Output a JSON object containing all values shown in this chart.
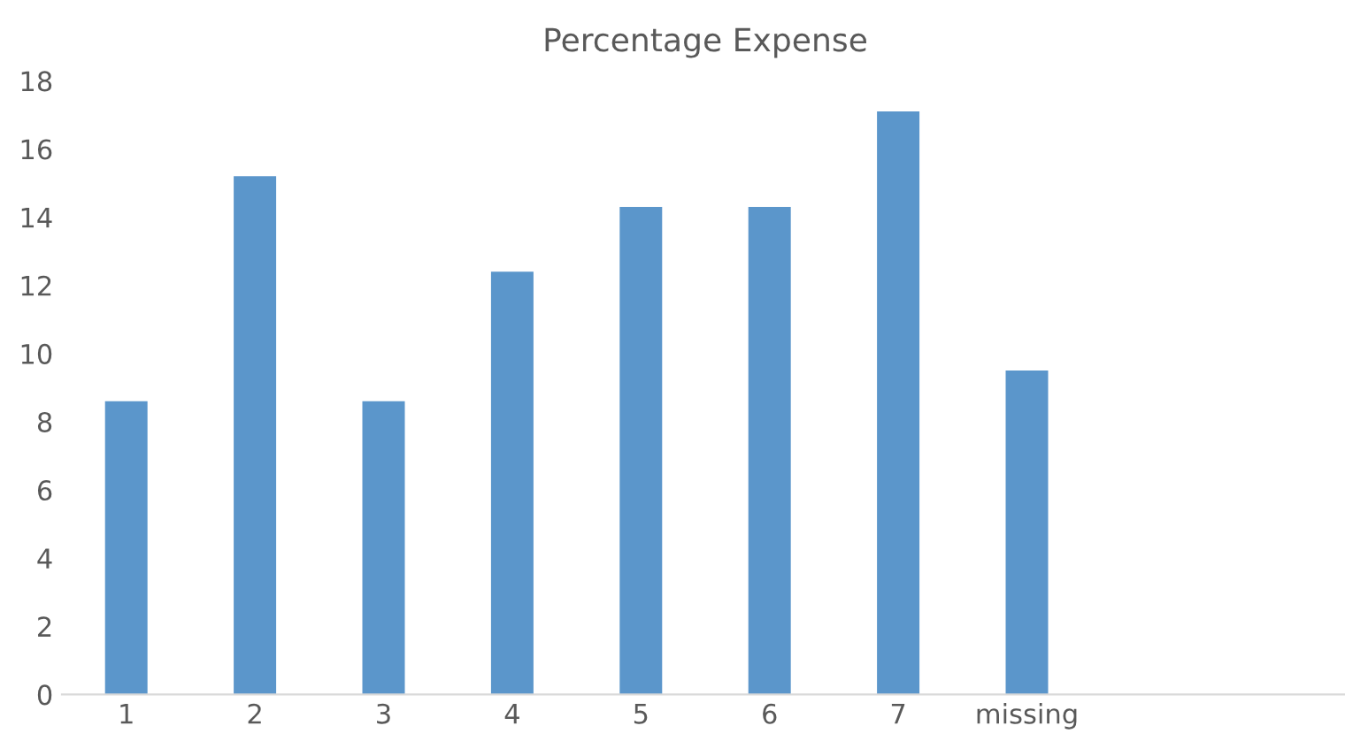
{
  "chart_data": {
    "type": "bar",
    "title": "Percentage Expense",
    "categories": [
      "1",
      "2",
      "3",
      "4",
      "5",
      "6",
      "7",
      "missing",
      null,
      null
    ],
    "values": [
      8.6,
      15.2,
      8.6,
      12.4,
      14.3,
      14.3,
      17.1,
      9.5,
      null,
      null
    ],
    "color": "#5b96cb",
    "ylim": [
      0,
      18
    ],
    "yticks": [
      0,
      2,
      4,
      6,
      8,
      10,
      12,
      14,
      16,
      18
    ],
    "grid": false
  }
}
